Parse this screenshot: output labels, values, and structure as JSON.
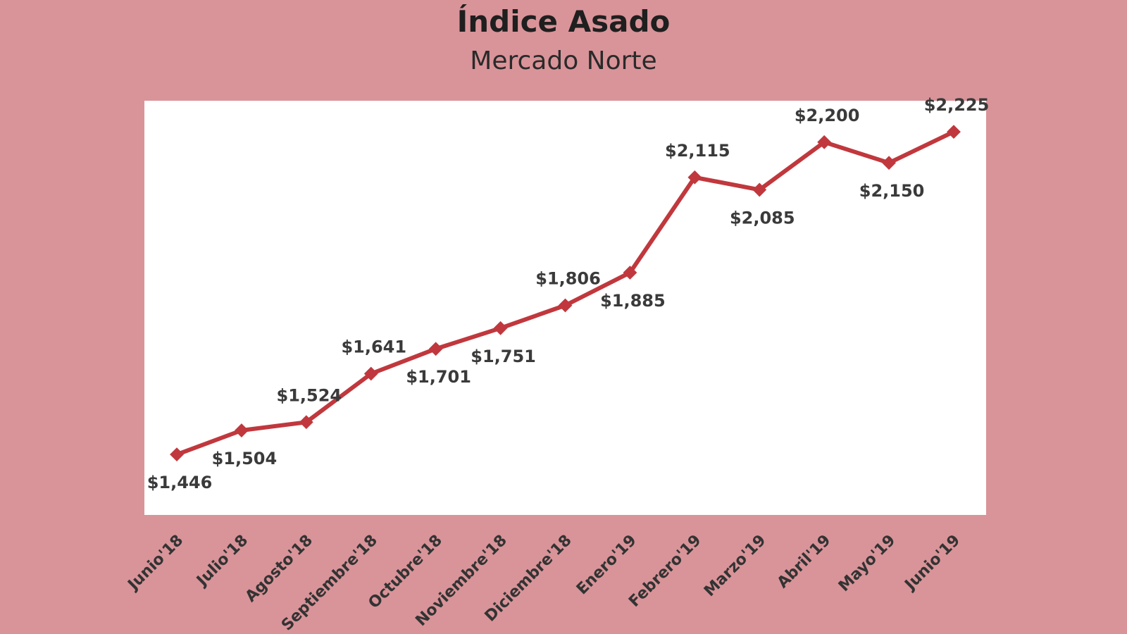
{
  "chart_data": {
    "type": "line",
    "title": "Índice Asado",
    "subtitle": "Mercado Norte",
    "categories": [
      "Junio'18",
      "Julio'18",
      "Agosto'18",
      "Septiembre'18",
      "Octubre'18",
      "Noviembre'18",
      "Diciembre'18",
      "Enero'19",
      "Febrero'19",
      "Marzo'19",
      "Abril'19",
      "Mayo'19",
      "Junio'19"
    ],
    "values": [
      1446,
      1504,
      1524,
      1641,
      1701,
      1751,
      1806,
      1885,
      2115,
      2085,
      2200,
      2150,
      2225
    ],
    "data_labels": [
      "$1,446",
      "$1,504",
      "$1,524",
      "$1,641",
      "$1,701",
      "$1,751",
      "$1,806",
      "$1,885",
      "$2,115",
      "$2,085",
      "$2,200",
      "$2,150",
      "$2,225"
    ],
    "label_position": [
      "below",
      "below",
      "above",
      "above",
      "below",
      "below",
      "above",
      "below",
      "above",
      "below",
      "above",
      "below",
      "above"
    ],
    "ylim": [
      1300,
      2300
    ],
    "grid": false,
    "legend": "none",
    "colors": {
      "background": "#d99499",
      "plot_area": "#ffffff",
      "series": "#c0383d"
    }
  }
}
